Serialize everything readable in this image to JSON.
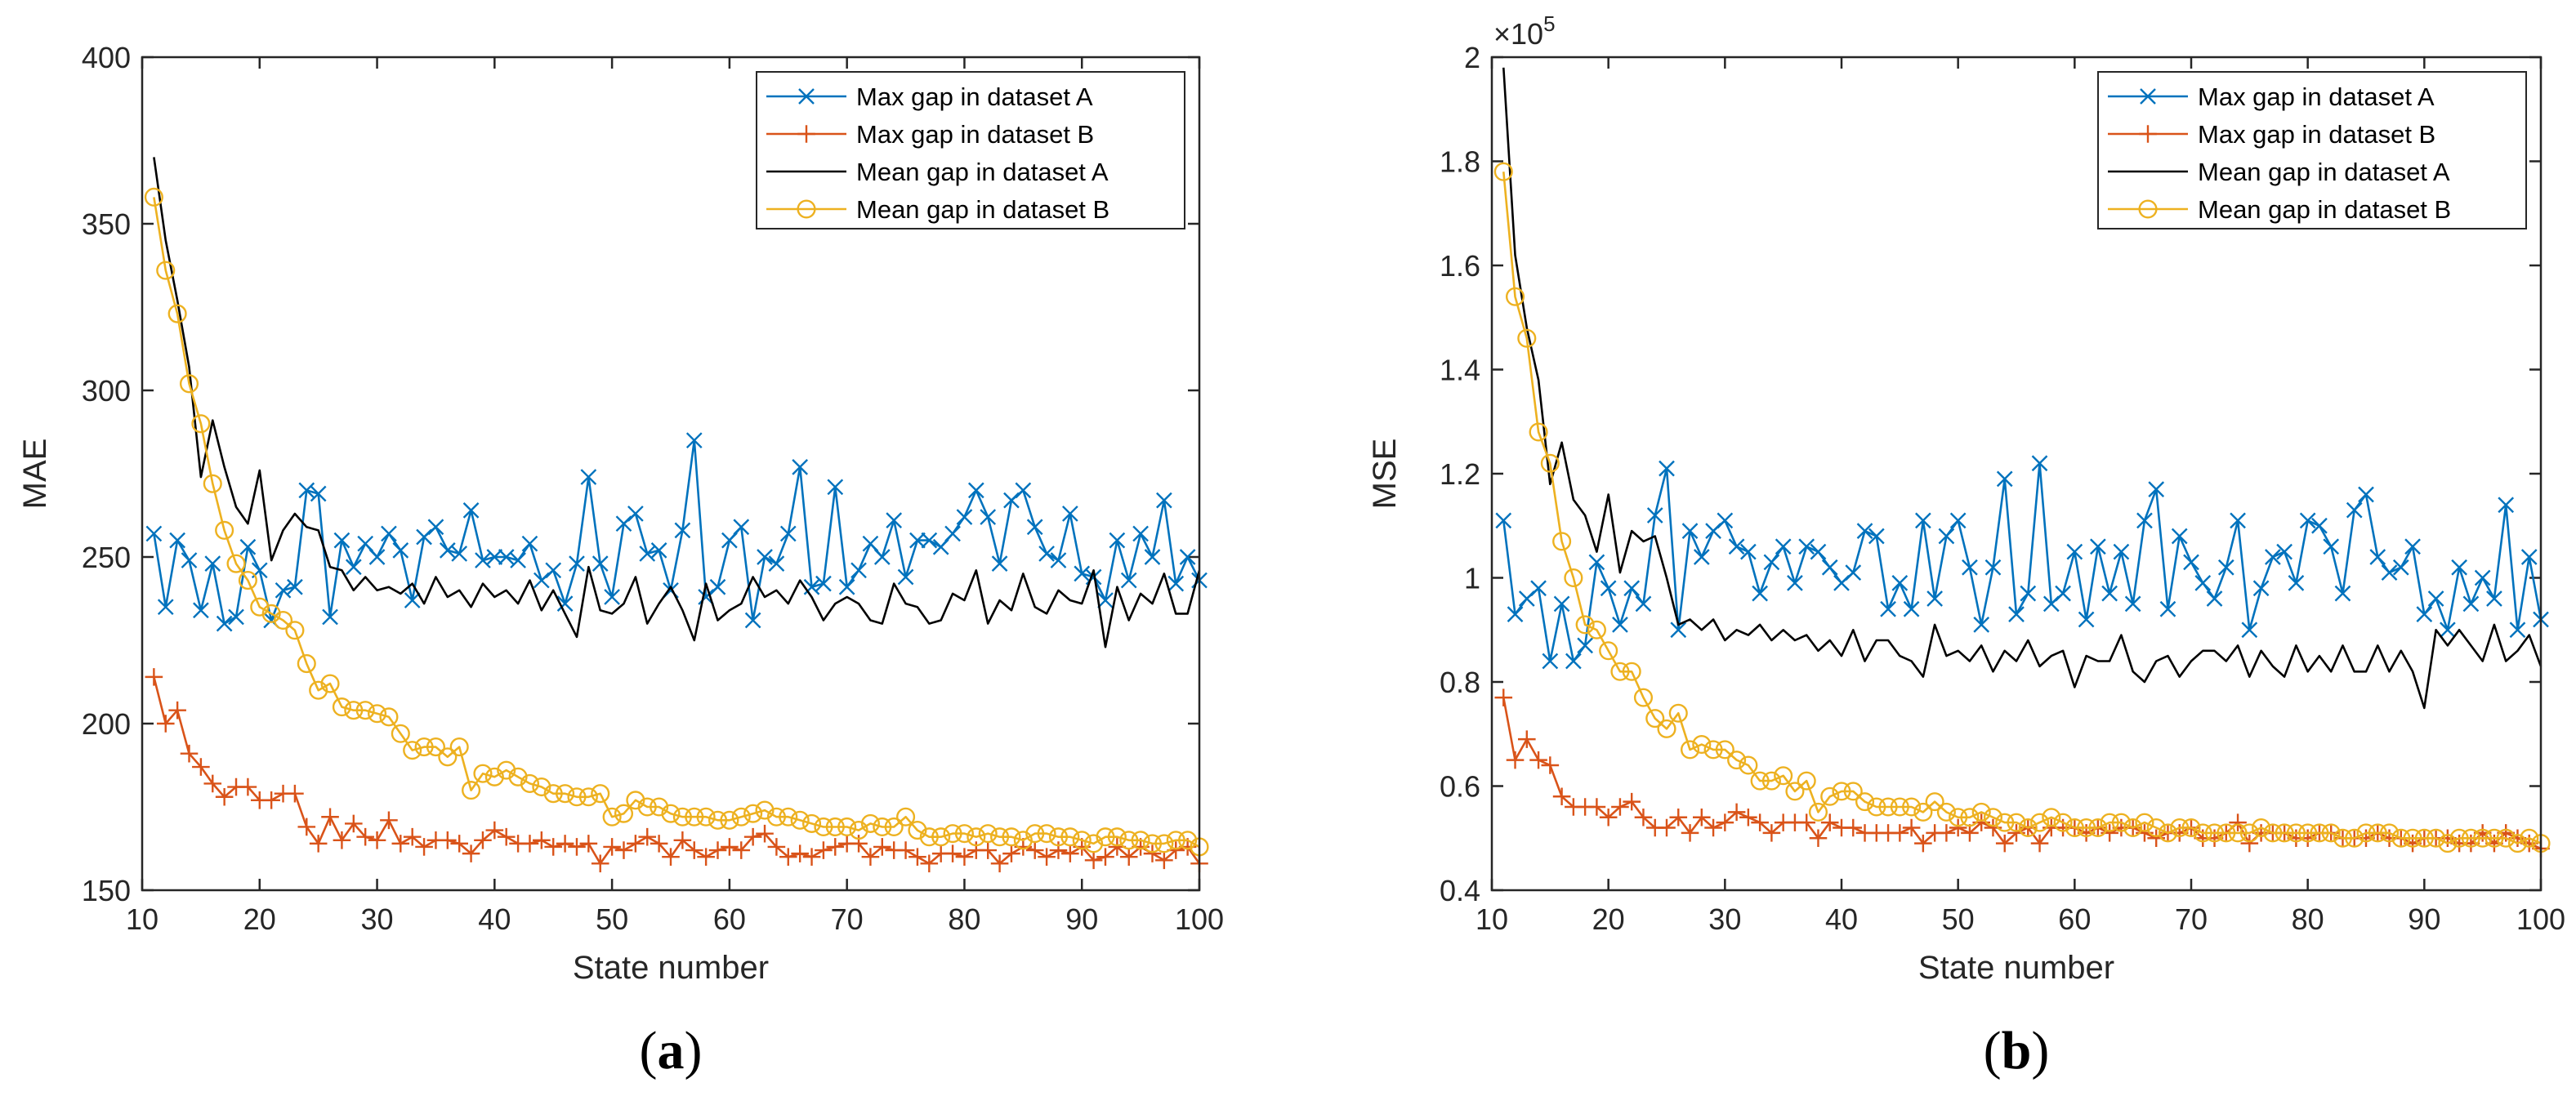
{
  "colors": {
    "max_a": "#0072BD",
    "max_b": "#D95319",
    "mean_a": "#000000",
    "mean_b": "#EDB120",
    "axis": "#262626"
  },
  "chart_data": [
    {
      "type": "line",
      "panel_label": "a",
      "title": "",
      "xlabel": "State number",
      "ylabel": "MAE",
      "exponent_label": "",
      "xlim": [
        10,
        100
      ],
      "ylim": [
        150,
        400
      ],
      "xticks": [
        10,
        20,
        30,
        40,
        50,
        60,
        70,
        80,
        90,
        100
      ],
      "yticks": [
        150,
        200,
        250,
        300,
        350,
        400
      ],
      "ytick_labels": [
        "150",
        "200",
        "250",
        "300",
        "350",
        "400"
      ],
      "legend_position": "top-right",
      "x": [
        11,
        12,
        13,
        14,
        15,
        16,
        17,
        18,
        19,
        20,
        21,
        22,
        23,
        24,
        25,
        26,
        27,
        28,
        29,
        30,
        31,
        32,
        33,
        34,
        35,
        36,
        37,
        38,
        39,
        40,
        41,
        42,
        43,
        44,
        45,
        46,
        47,
        48,
        49,
        50,
        51,
        52,
        53,
        54,
        55,
        56,
        57,
        58,
        59,
        60,
        61,
        62,
        63,
        64,
        65,
        66,
        67,
        68,
        69,
        70,
        71,
        72,
        73,
        74,
        75,
        76,
        77,
        78,
        79,
        80,
        81,
        82,
        83,
        84,
        85,
        86,
        87,
        88,
        89,
        90,
        91,
        92,
        93,
        94,
        95,
        96,
        97,
        98,
        99,
        100
      ],
      "series": [
        {
          "name": "Max gap in dataset A",
          "color_key": "max_a",
          "marker": "x",
          "values": [
            257,
            235,
            255,
            249,
            234,
            248,
            230,
            232,
            253,
            246,
            231,
            240,
            241,
            270,
            269,
            232,
            255,
            247,
            254,
            250,
            257,
            252,
            237,
            256,
            259,
            252,
            251,
            264,
            249,
            250,
            250,
            249,
            254,
            243,
            246,
            236,
            248,
            274,
            248,
            238,
            260,
            263,
            251,
            252,
            240,
            258,
            285,
            238,
            241,
            255,
            259,
            231,
            250,
            248,
            257,
            277,
            241,
            242,
            271,
            241,
            246,
            254,
            250,
            261,
            244,
            255,
            255,
            253,
            257,
            262,
            270,
            262,
            248,
            267,
            270,
            259,
            251,
            249,
            263,
            245,
            244,
            237,
            255,
            243,
            257,
            250,
            267,
            242,
            250,
            243
          ]
        },
        {
          "name": "Max gap in dataset B",
          "color_key": "max_b",
          "marker": "+",
          "values": [
            214,
            200,
            204,
            191,
            187,
            182,
            178,
            181,
            181,
            177,
            177,
            179,
            179,
            169,
            164,
            172,
            165,
            170,
            166,
            165,
            171,
            164,
            166,
            163,
            165,
            165,
            164,
            161,
            165,
            168,
            166,
            164,
            164,
            165,
            163,
            164,
            163,
            164,
            158,
            163,
            162,
            164,
            166,
            164,
            160,
            165,
            162,
            160,
            162,
            163,
            162,
            166,
            167,
            163,
            160,
            161,
            160,
            162,
            163,
            164,
            164,
            160,
            163,
            162,
            162,
            160,
            158,
            161,
            161,
            160,
            162,
            162,
            158,
            161,
            163,
            162,
            160,
            162,
            161,
            163,
            159,
            160,
            163,
            160,
            163,
            161,
            159,
            162,
            163,
            158
          ]
        },
        {
          "name": "Mean gap in dataset A",
          "color_key": "mean_a",
          "marker": "none",
          "values": [
            370,
            345,
            327,
            307,
            274,
            291,
            277,
            265,
            260,
            276,
            249,
            258,
            263,
            259,
            258,
            247,
            246,
            240,
            244,
            240,
            241,
            239,
            242,
            236,
            244,
            238,
            240,
            235,
            242,
            238,
            240,
            236,
            243,
            234,
            240,
            233,
            226,
            247,
            234,
            233,
            236,
            244,
            230,
            236,
            241,
            234,
            225,
            242,
            231,
            234,
            236,
            244,
            238,
            240,
            236,
            243,
            238,
            231,
            236,
            238,
            236,
            231,
            230,
            242,
            236,
            235,
            230,
            231,
            239,
            237,
            246,
            230,
            237,
            234,
            245,
            235,
            233,
            240,
            237,
            236,
            246,
            223,
            241,
            231,
            239,
            236,
            245,
            233,
            233,
            246
          ]
        },
        {
          "name": "Mean gap in dataset B",
          "color_key": "mean_b",
          "marker": "o",
          "values": [
            358,
            336,
            323,
            302,
            290,
            272,
            258,
            248,
            243,
            235,
            233,
            231,
            228,
            218,
            210,
            212,
            205,
            204,
            204,
            203,
            202,
            197,
            192,
            193,
            193,
            190,
            193,
            180,
            185,
            184,
            186,
            184,
            182,
            181,
            179,
            179,
            178,
            178,
            179,
            172,
            173,
            177,
            175,
            175,
            173,
            172,
            172,
            172,
            171,
            171,
            172,
            173,
            174,
            172,
            172,
            171,
            170,
            169,
            169,
            169,
            168,
            170,
            169,
            169,
            172,
            168,
            166,
            166,
            167,
            167,
            166,
            167,
            166,
            166,
            165,
            167,
            167,
            166,
            166,
            165,
            164,
            166,
            166,
            165,
            165,
            164,
            164,
            165,
            165,
            163
          ]
        }
      ]
    },
    {
      "type": "line",
      "panel_label": "b",
      "title": "",
      "xlabel": "State number",
      "ylabel": "MSE",
      "exponent_label": "×10",
      "exponent_power": "5",
      "xlim": [
        10,
        100
      ],
      "ylim": [
        0.4,
        2.0
      ],
      "xticks": [
        10,
        20,
        30,
        40,
        50,
        60,
        70,
        80,
        90,
        100
      ],
      "yticks": [
        0.4,
        0.6,
        0.8,
        1.0,
        1.2,
        1.4,
        1.6,
        1.8,
        2.0
      ],
      "ytick_labels": [
        "0.4",
        "0.6",
        "0.8",
        "1",
        "1.2",
        "1.4",
        "1.6",
        "1.8",
        "2"
      ],
      "legend_position": "top-right",
      "x": [
        11,
        12,
        13,
        14,
        15,
        16,
        17,
        18,
        19,
        20,
        21,
        22,
        23,
        24,
        25,
        26,
        27,
        28,
        29,
        30,
        31,
        32,
        33,
        34,
        35,
        36,
        37,
        38,
        39,
        40,
        41,
        42,
        43,
        44,
        45,
        46,
        47,
        48,
        49,
        50,
        51,
        52,
        53,
        54,
        55,
        56,
        57,
        58,
        59,
        60,
        61,
        62,
        63,
        64,
        65,
        66,
        67,
        68,
        69,
        70,
        71,
        72,
        73,
        74,
        75,
        76,
        77,
        78,
        79,
        80,
        81,
        82,
        83,
        84,
        85,
        86,
        87,
        88,
        89,
        90,
        91,
        92,
        93,
        94,
        95,
        96,
        97,
        98,
        99,
        100
      ],
      "series": [
        {
          "name": "Max gap in dataset A",
          "color_key": "max_a",
          "marker": "x",
          "values": [
            1.11,
            0.93,
            0.96,
            0.98,
            0.84,
            0.95,
            0.84,
            0.87,
            1.03,
            0.98,
            0.91,
            0.98,
            0.95,
            1.12,
            1.21,
            0.9,
            1.09,
            1.04,
            1.09,
            1.11,
            1.06,
            1.05,
            0.97,
            1.03,
            1.06,
            0.99,
            1.06,
            1.05,
            1.02,
            0.99,
            1.01,
            1.09,
            1.08,
            0.94,
            0.99,
            0.94,
            1.11,
            0.96,
            1.08,
            1.11,
            1.02,
            0.91,
            1.02,
            1.19,
            0.93,
            0.97,
            1.22,
            0.95,
            0.97,
            1.05,
            0.92,
            1.06,
            0.97,
            1.05,
            0.95,
            1.11,
            1.17,
            0.94,
            1.08,
            1.03,
            0.99,
            0.96,
            1.02,
            1.11,
            0.9,
            0.98,
            1.04,
            1.05,
            0.99,
            1.11,
            1.1,
            1.06,
            0.97,
            1.13,
            1.16,
            1.04,
            1.01,
            1.02,
            1.06,
            0.93,
            0.96,
            0.9,
            1.02,
            0.95,
            1.0,
            0.96,
            1.14,
            0.9,
            1.04,
            0.92
          ]
        },
        {
          "name": "Max gap in dataset B",
          "color_key": "max_b",
          "marker": "+",
          "values": [
            0.77,
            0.65,
            0.69,
            0.65,
            0.64,
            0.58,
            0.56,
            0.56,
            0.56,
            0.54,
            0.56,
            0.57,
            0.54,
            0.52,
            0.52,
            0.54,
            0.51,
            0.54,
            0.52,
            0.53,
            0.55,
            0.54,
            0.53,
            0.51,
            0.53,
            0.53,
            0.53,
            0.5,
            0.53,
            0.52,
            0.52,
            0.51,
            0.51,
            0.51,
            0.51,
            0.52,
            0.49,
            0.51,
            0.51,
            0.52,
            0.51,
            0.53,
            0.52,
            0.49,
            0.51,
            0.52,
            0.49,
            0.52,
            0.52,
            0.52,
            0.51,
            0.52,
            0.51,
            0.52,
            0.52,
            0.51,
            0.5,
            0.51,
            0.51,
            0.52,
            0.5,
            0.5,
            0.51,
            0.53,
            0.49,
            0.51,
            0.51,
            0.51,
            0.5,
            0.5,
            0.51,
            0.51,
            0.5,
            0.5,
            0.5,
            0.51,
            0.5,
            0.5,
            0.49,
            0.5,
            0.5,
            0.5,
            0.49,
            0.49,
            0.51,
            0.49,
            0.51,
            0.5,
            0.49,
            0.48
          ]
        },
        {
          "name": "Mean gap in dataset A",
          "color_key": "mean_a",
          "marker": "none",
          "values": [
            1.98,
            1.62,
            1.48,
            1.38,
            1.18,
            1.26,
            1.15,
            1.12,
            1.05,
            1.16,
            1.01,
            1.09,
            1.07,
            1.08,
            1.0,
            0.91,
            0.92,
            0.9,
            0.92,
            0.88,
            0.9,
            0.89,
            0.91,
            0.88,
            0.9,
            0.88,
            0.89,
            0.86,
            0.88,
            0.85,
            0.9,
            0.84,
            0.88,
            0.88,
            0.85,
            0.84,
            0.81,
            0.91,
            0.85,
            0.86,
            0.84,
            0.87,
            0.82,
            0.86,
            0.84,
            0.88,
            0.83,
            0.85,
            0.86,
            0.79,
            0.85,
            0.84,
            0.84,
            0.89,
            0.82,
            0.8,
            0.84,
            0.85,
            0.81,
            0.84,
            0.86,
            0.86,
            0.84,
            0.87,
            0.81,
            0.86,
            0.83,
            0.81,
            0.87,
            0.82,
            0.85,
            0.82,
            0.87,
            0.82,
            0.82,
            0.87,
            0.82,
            0.86,
            0.82,
            0.75,
            0.9,
            0.87,
            0.9,
            0.87,
            0.84,
            0.91,
            0.84,
            0.86,
            0.89,
            0.83
          ]
        },
        {
          "name": "Mean gap in dataset B",
          "color_key": "mean_b",
          "marker": "o",
          "values": [
            1.78,
            1.54,
            1.46,
            1.28,
            1.22,
            1.07,
            1.0,
            0.91,
            0.9,
            0.86,
            0.82,
            0.82,
            0.77,
            0.73,
            0.71,
            0.74,
            0.67,
            0.68,
            0.67,
            0.67,
            0.65,
            0.64,
            0.61,
            0.61,
            0.62,
            0.59,
            0.61,
            0.55,
            0.58,
            0.59,
            0.59,
            0.57,
            0.56,
            0.56,
            0.56,
            0.56,
            0.55,
            0.57,
            0.55,
            0.54,
            0.54,
            0.55,
            0.54,
            0.53,
            0.53,
            0.52,
            0.53,
            0.54,
            0.53,
            0.52,
            0.52,
            0.52,
            0.53,
            0.53,
            0.52,
            0.53,
            0.52,
            0.51,
            0.52,
            0.52,
            0.51,
            0.51,
            0.51,
            0.51,
            0.51,
            0.52,
            0.51,
            0.51,
            0.51,
            0.51,
            0.51,
            0.51,
            0.5,
            0.5,
            0.51,
            0.51,
            0.51,
            0.5,
            0.5,
            0.5,
            0.5,
            0.49,
            0.5,
            0.5,
            0.5,
            0.5,
            0.5,
            0.49,
            0.5,
            0.49
          ]
        }
      ]
    }
  ]
}
